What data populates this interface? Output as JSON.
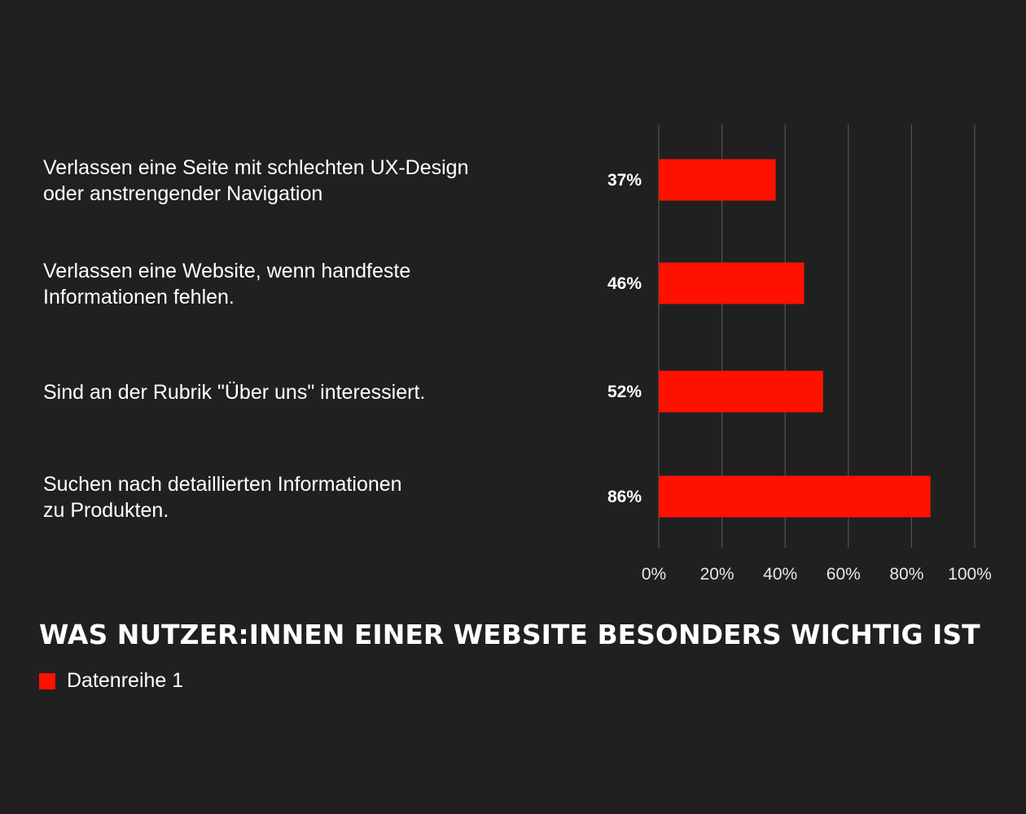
{
  "chart_data": {
    "type": "bar",
    "orientation": "horizontal",
    "title": "WAS NUTZER:INNEN EINER WEBSITE BESONDERS WICHTIG IST",
    "categories": [
      [
        "Verlassen eine Seite mit schlechten UX-Design",
        "oder anstrengender Navigation"
      ],
      [
        "Verlassen eine Website, wenn handfeste",
        "Informationen fehlen."
      ],
      [
        "Sind an der Rubrik \"Über uns\" interessiert."
      ],
      [
        "Suchen nach detaillierten Informationen",
        "zu Produkten."
      ]
    ],
    "series": [
      {
        "name": "Datenreihe 1",
        "values": [
          37,
          46,
          52,
          86
        ],
        "value_labels": [
          "37%",
          "46%",
          "52%",
          "86%"
        ],
        "color": "#ff1100"
      }
    ],
    "xlim": [
      0,
      100
    ],
    "x_ticks": [
      0,
      20,
      40,
      60,
      80,
      100
    ],
    "x_tick_labels": [
      "0%",
      "20%",
      "40%",
      "60%",
      "80%",
      "100%"
    ],
    "grid": true,
    "legend_position": "bottom-left"
  },
  "colors": {
    "background": "#202020",
    "bar": "#ff1100",
    "gridline": "#555555",
    "text": "#ffffff"
  }
}
